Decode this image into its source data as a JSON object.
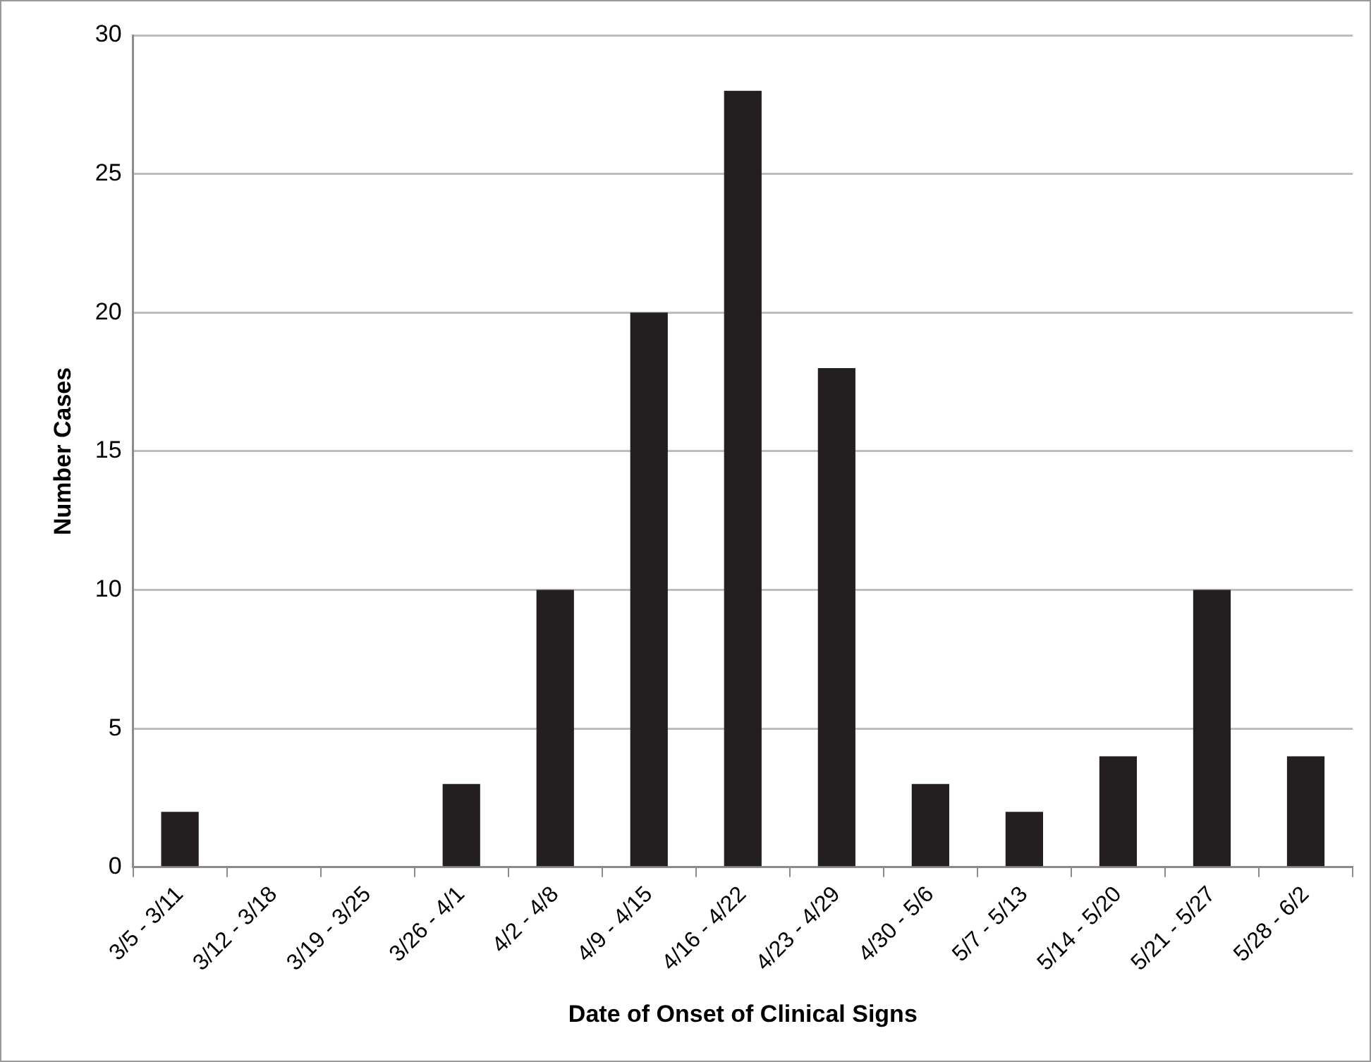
{
  "chart_data": {
    "type": "bar",
    "xlabel": "Date of Onset of Clinical Signs",
    "ylabel": "Number Cases",
    "categories": [
      "3/5 - 3/11",
      "3/12 - 3/18",
      "3/19 - 3/25",
      "3/26 - 4/1",
      "4/2 - 4/8",
      "4/9 - 4/15",
      "4/16 - 4/22",
      "4/23 - 4/29",
      "4/30 - 5/6",
      "5/7 - 5/13",
      "5/14 - 5/20",
      "5/21 - 5/27",
      "5/28 - 6/2"
    ],
    "values": [
      2,
      0,
      0,
      3,
      10,
      20,
      28,
      18,
      3,
      2,
      4,
      10,
      4
    ],
    "color": "#231f20",
    "ylim": [
      0,
      30
    ],
    "yticks": [
      0,
      5,
      10,
      15,
      20,
      25,
      30
    ],
    "grid": "y",
    "legend": false
  }
}
